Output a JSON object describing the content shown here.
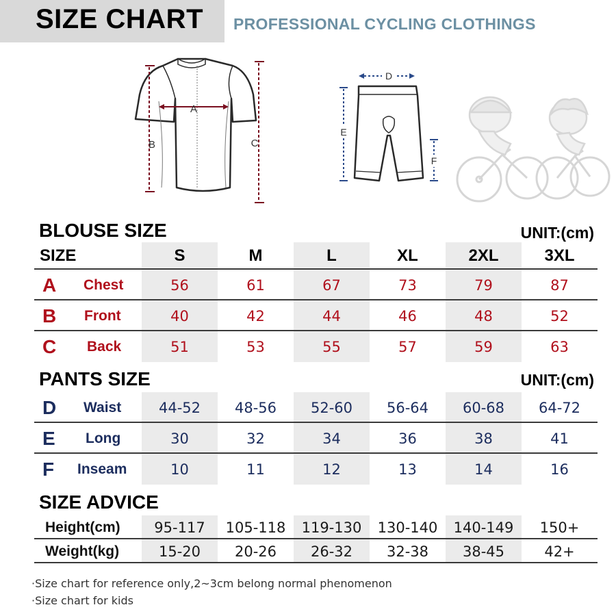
{
  "header": {
    "title": "SIZE CHART",
    "subtitle": "PROFESSIONAL CYCLING CLOTHINGS"
  },
  "diagram": {
    "jersey_labels": {
      "a": "A",
      "b": "B",
      "c": "C"
    },
    "shorts_labels": {
      "d": "D",
      "e": "E",
      "f": "F"
    }
  },
  "blouse": {
    "title": "BLOUSE SIZE",
    "unit": "UNIT:(cm)",
    "size_label": "SIZE",
    "sizes": [
      "S",
      "M",
      "L",
      "XL",
      "2XL",
      "3XL"
    ],
    "rows": [
      {
        "letter": "A",
        "name": "Chest",
        "values": [
          "56",
          "61",
          "67",
          "73",
          "79",
          "87"
        ]
      },
      {
        "letter": "B",
        "name": "Front",
        "values": [
          "40",
          "42",
          "44",
          "46",
          "48",
          "52"
        ]
      },
      {
        "letter": "C",
        "name": "Back",
        "values": [
          "51",
          "53",
          "55",
          "57",
          "59",
          "63"
        ]
      }
    ]
  },
  "pants": {
    "title": "PANTS SIZE",
    "unit": "UNIT:(cm)",
    "rows": [
      {
        "letter": "D",
        "name": "Waist",
        "values": [
          "44-52",
          "48-56",
          "52-60",
          "56-64",
          "60-68",
          "64-72"
        ]
      },
      {
        "letter": "E",
        "name": "Long",
        "values": [
          "30",
          "32",
          "34",
          "36",
          "38",
          "41"
        ]
      },
      {
        "letter": "F",
        "name": "Inseam",
        "values": [
          "10",
          "11",
          "12",
          "13",
          "14",
          "16"
        ]
      }
    ]
  },
  "advice": {
    "title": "SIZE ADVICE",
    "rows": [
      {
        "label": "Height(cm)",
        "values": [
          "95-117",
          "105-118",
          "119-130",
          "130-140",
          "140-149",
          "150+"
        ]
      },
      {
        "label": "Weight(kg)",
        "values": [
          "15-20",
          "20-26",
          "26-32",
          "32-38",
          "38-45",
          "42+"
        ]
      }
    ]
  },
  "notes": [
    "·Size chart for reference only,2~3cm belong normal phenomenon",
    "·Size chart for kids"
  ],
  "colors": {
    "blouse_accent": "#b0101c",
    "pants_accent": "#1c2d5e",
    "subtitle": "#6c90a3",
    "header_bar": "#d9d9d9",
    "column_shade": "#ebebeb"
  }
}
